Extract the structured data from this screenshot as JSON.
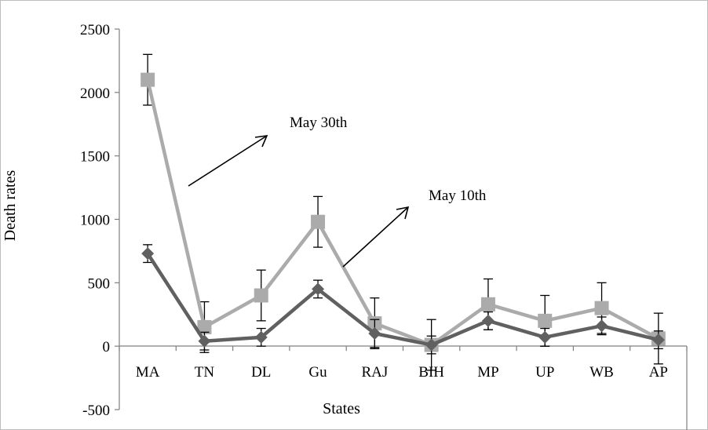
{
  "chart_data": {
    "type": "line",
    "title": "",
    "xlabel": "States",
    "ylabel": "Death rates",
    "categories": [
      "MA",
      "TN",
      "DL",
      "Gu",
      "RAJ",
      "BIH",
      "MP",
      "UP",
      "WB",
      "AP"
    ],
    "ylim": [
      -500,
      2500
    ],
    "yticks": [
      -500,
      0,
      500,
      1000,
      1500,
      2000,
      2500
    ],
    "grid": false,
    "legend": "none",
    "series": [
      {
        "values": [
          730,
          40,
          70,
          450,
          100,
          10,
          200,
          70,
          160,
          50
        ],
        "errors": [
          70,
          70,
          70,
          70,
          110,
          70,
          70,
          70,
          70,
          70
        ],
        "color": "#606060",
        "marker": "diamond"
      },
      {
        "values": [
          2100,
          150,
          400,
          980,
          180,
          10,
          330,
          200,
          300,
          60
        ],
        "errors": [
          200,
          200,
          200,
          200,
          200,
          200,
          200,
          200,
          200,
          200
        ],
        "color": "#ababab",
        "marker": "square"
      }
    ],
    "annotations": [
      {
        "text": "May 30th"
      },
      {
        "text": "May 10th"
      }
    ]
  }
}
